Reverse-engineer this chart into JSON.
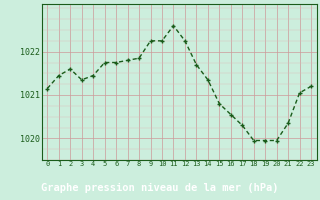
{
  "x": [
    0,
    1,
    2,
    3,
    4,
    5,
    6,
    7,
    8,
    9,
    10,
    11,
    12,
    13,
    14,
    15,
    16,
    17,
    18,
    19,
    20,
    21,
    22,
    23
  ],
  "y": [
    1021.15,
    1021.45,
    1021.6,
    1021.35,
    1021.45,
    1021.75,
    1021.75,
    1021.8,
    1021.85,
    1022.25,
    1022.25,
    1022.6,
    1022.25,
    1021.7,
    1021.35,
    1020.8,
    1020.55,
    1020.3,
    1019.95,
    1019.95,
    1019.95,
    1020.35,
    1021.05,
    1021.2
  ],
  "line_color": "#1a5c1a",
  "marker": "+",
  "marker_color": "#1a5c1a",
  "bg_color": "#cceedd",
  "grid_color_major": "#b8d8cc",
  "xlabel": "Graphe pression niveau de la mer (hPa)",
  "xlabel_color": "#ffffff",
  "xlabel_bg": "#2a6b2a",
  "xlabel_fontsize": 7.5,
  "tick_color": "#1a5c1a",
  "axis_color": "#1a5c1a",
  "ylim": [
    1019.5,
    1023.1
  ],
  "yticks": [
    1020,
    1021,
    1022
  ],
  "xlim": [
    -0.5,
    23.5
  ],
  "xticks": [
    0,
    1,
    2,
    3,
    4,
    5,
    6,
    7,
    8,
    9,
    10,
    11,
    12,
    13,
    14,
    15,
    16,
    17,
    18,
    19,
    20,
    21,
    22,
    23
  ],
  "xtick_labels": [
    "0",
    "1",
    "2",
    "3",
    "4",
    "5",
    "6",
    "7",
    "8",
    "9",
    "10",
    "11",
    "12",
    "13",
    "14",
    "15",
    "16",
    "17",
    "18",
    "19",
    "20",
    "21",
    "22",
    "23"
  ],
  "linewidth": 1.0,
  "markersize": 3.5
}
